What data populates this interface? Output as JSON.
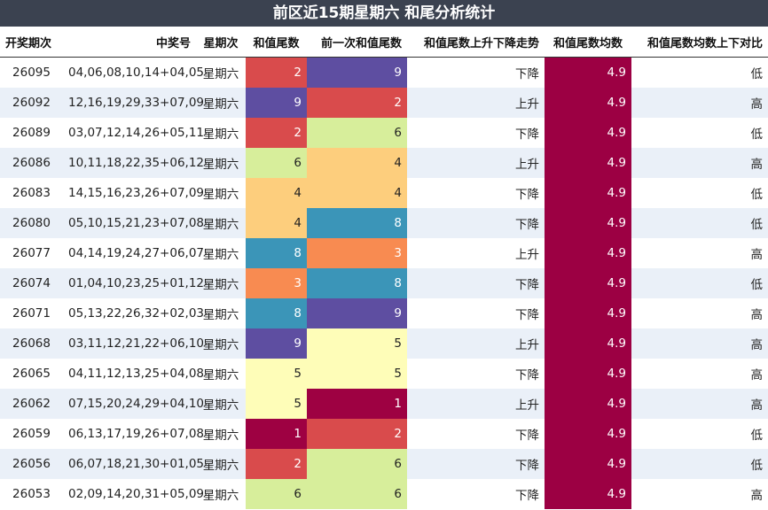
{
  "title": "前区近15期星期六 和尾分析统计",
  "headers": [
    "开奖期次",
    "中奖号",
    "星期次",
    "和值尾数",
    "前一次和值尾数",
    "和值尾数上升下降走势",
    "和值尾数均数",
    "和值尾数均数上下对比"
  ],
  "rows": [
    {
      "issue": "26095",
      "numbers": "04,06,08,10,14+04,05",
      "weekday": "星期六",
      "tail": "2",
      "prev_tail": "9",
      "trend": "下降",
      "avg": "4.9",
      "compare": "低"
    },
    {
      "issue": "26092",
      "numbers": "12,16,19,29,33+07,09",
      "weekday": "星期六",
      "tail": "9",
      "prev_tail": "2",
      "trend": "上升",
      "avg": "4.9",
      "compare": "高"
    },
    {
      "issue": "26089",
      "numbers": "03,07,12,14,26+05,11",
      "weekday": "星期六",
      "tail": "2",
      "prev_tail": "6",
      "trend": "下降",
      "avg": "4.9",
      "compare": "低"
    },
    {
      "issue": "26086",
      "numbers": "10,11,18,22,35+06,12",
      "weekday": "星期六",
      "tail": "6",
      "prev_tail": "4",
      "trend": "上升",
      "avg": "4.9",
      "compare": "高"
    },
    {
      "issue": "26083",
      "numbers": "14,15,16,23,26+07,09",
      "weekday": "星期六",
      "tail": "4",
      "prev_tail": "4",
      "trend": "下降",
      "avg": "4.9",
      "compare": "低"
    },
    {
      "issue": "26080",
      "numbers": "05,10,15,21,23+07,08",
      "weekday": "星期六",
      "tail": "4",
      "prev_tail": "8",
      "trend": "下降",
      "avg": "4.9",
      "compare": "低"
    },
    {
      "issue": "26077",
      "numbers": "04,14,19,24,27+06,07",
      "weekday": "星期六",
      "tail": "8",
      "prev_tail": "3",
      "trend": "上升",
      "avg": "4.9",
      "compare": "高"
    },
    {
      "issue": "26074",
      "numbers": "01,04,10,23,25+01,12",
      "weekday": "星期六",
      "tail": "3",
      "prev_tail": "8",
      "trend": "下降",
      "avg": "4.9",
      "compare": "低"
    },
    {
      "issue": "26071",
      "numbers": "05,13,22,26,32+02,03",
      "weekday": "星期六",
      "tail": "8",
      "prev_tail": "9",
      "trend": "下降",
      "avg": "4.9",
      "compare": "高"
    },
    {
      "issue": "26068",
      "numbers": "03,11,12,21,22+06,10",
      "weekday": "星期六",
      "tail": "9",
      "prev_tail": "5",
      "trend": "上升",
      "avg": "4.9",
      "compare": "高"
    },
    {
      "issue": "26065",
      "numbers": "04,11,12,13,25+04,08",
      "weekday": "星期六",
      "tail": "5",
      "prev_tail": "5",
      "trend": "下降",
      "avg": "4.9",
      "compare": "高"
    },
    {
      "issue": "26062",
      "numbers": "07,15,20,24,29+04,10",
      "weekday": "星期六",
      "tail": "5",
      "prev_tail": "1",
      "trend": "上升",
      "avg": "4.9",
      "compare": "高"
    },
    {
      "issue": "26059",
      "numbers": "06,13,17,19,26+07,08",
      "weekday": "星期六",
      "tail": "1",
      "prev_tail": "2",
      "trend": "下降",
      "avg": "4.9",
      "compare": "低"
    },
    {
      "issue": "26056",
      "numbers": "06,07,18,21,30+01,05",
      "weekday": "星期六",
      "tail": "2",
      "prev_tail": "6",
      "trend": "下降",
      "avg": "4.9",
      "compare": "低"
    },
    {
      "issue": "26053",
      "numbers": "02,09,14,20,31+05,09",
      "weekday": "星期六",
      "tail": "6",
      "prev_tail": "6",
      "trend": "下降",
      "avg": "4.9",
      "compare": "高"
    }
  ],
  "colors": {
    "title_bg": "#3b4250",
    "row_alt": "#eaf0f8",
    "avg_cell": "#9c0043",
    "tail_scale": {
      "1": "#9e0142",
      "2": "#d94b4c",
      "3": "#f88b51",
      "4": "#fdce7d",
      "5": "#fefdb8",
      "6": "#d7ee9b",
      "8": "#3b95b8",
      "9": "#5e4ea1"
    },
    "light_text": "#ffffff",
    "dark_text": "#222222"
  }
}
